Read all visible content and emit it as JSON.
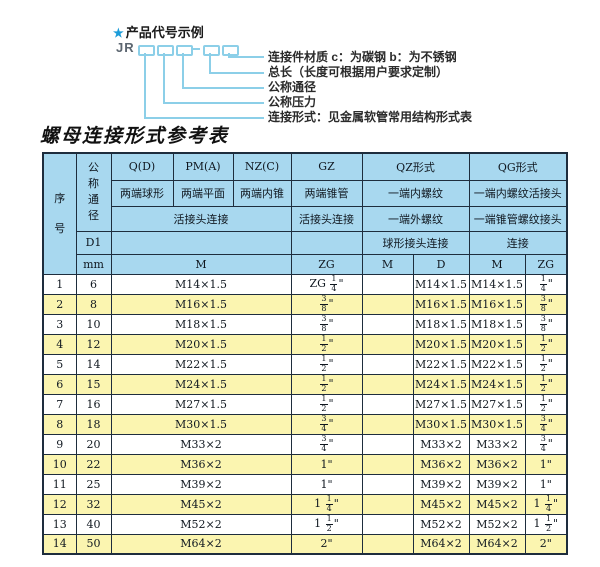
{
  "colors": {
    "header_bg": "#a8d8ef",
    "alt_row_bg": "#fbf5b0",
    "row_bg": "#ffffff",
    "table_border": "#1e2d3d",
    "star_blue": "#1b9cd9",
    "diagram_line_blue": "#8ccfe8"
  },
  "diagram": {
    "star": "★",
    "title": "产品代号示例",
    "code_prefix": "JR",
    "labels": [
      "连接件材质  c：为碳钢  b：为不锈钢",
      "总长（长度可根据用户要求定制）",
      "公称通径",
      "公称压力",
      "连接形式：见金属软管常用结构形式表"
    ]
  },
  "table": {
    "title": "螺母连接形式参考表",
    "header_rows": [
      [
        {
          "t": "序号",
          "rs": 5,
          "v": 2
        },
        {
          "t": "公称通径",
          "rs": 3,
          "v": 1
        },
        {
          "t": "Q(D)"
        },
        {
          "t": "PM(A)"
        },
        {
          "t": "NZ(C)"
        },
        {
          "t": "GZ"
        },
        {
          "t": "QZ形式",
          "cs": 2
        },
        {
          "t": "QG形式",
          "cs": 2
        }
      ],
      [
        {
          "t": "两端球形"
        },
        {
          "t": "两端平面"
        },
        {
          "t": "两端内锥"
        },
        {
          "t": "两端锥管"
        },
        {
          "t": "一端内螺纹",
          "cs": 2
        },
        {
          "t": "一端内螺纹活接头",
          "cs": 2
        }
      ],
      [
        {
          "t": "活接头连接",
          "cs": 3
        },
        {
          "t": "活接头连接"
        },
        {
          "t": "一端外螺纹",
          "cs": 2
        },
        {
          "t": "一端锥管螺纹接头",
          "cs": 2
        }
      ],
      [
        {
          "t": "D1"
        },
        {
          "t": "",
          "cs": 3
        },
        {
          "t": ""
        },
        {
          "t": "球形接头连接",
          "cs": 2
        },
        {
          "t": "连接",
          "cs": 2
        }
      ],
      [
        {
          "t": "mm"
        },
        {
          "t": "M",
          "cs": 3
        },
        {
          "t": "ZG"
        },
        {
          "t": "M"
        },
        {
          "t": "D"
        },
        {
          "t": "M"
        },
        {
          "t": "ZG"
        }
      ]
    ],
    "rows": [
      [
        "1",
        "6",
        "M14×1.5",
        "ZG 1/4\"",
        "",
        "M14×1.5",
        "M14×1.5",
        "1/4\""
      ],
      [
        "2",
        "8",
        "M16×1.5",
        "3/8\"",
        "",
        "M16×1.5",
        "M16×1.5",
        "3/8\""
      ],
      [
        "3",
        "10",
        "M18×1.5",
        "3/8\"",
        "",
        "M18×1.5",
        "M18×1.5",
        "3/8\""
      ],
      [
        "4",
        "12",
        "M20×1.5",
        "1/2\"",
        "",
        "M20×1.5",
        "M20×1.5",
        "1/2\""
      ],
      [
        "5",
        "14",
        "M22×1.5",
        "1/2\"",
        "",
        "M22×1.5",
        "M22×1.5",
        "1/2\""
      ],
      [
        "6",
        "15",
        "M24×1.5",
        "1/2\"",
        "",
        "M24×1.5",
        "M24×1.5",
        "1/2\""
      ],
      [
        "7",
        "16",
        "M27×1.5",
        "1/2\"",
        "",
        "M27×1.5",
        "M27×1.5",
        "1/2\""
      ],
      [
        "8",
        "18",
        "M30×1.5",
        "3/4\"",
        "",
        "M30×1.5",
        "M30×1.5",
        "3/4\""
      ],
      [
        "9",
        "20",
        "M33×2",
        "3/4\"",
        "",
        "M33×2",
        "M33×2",
        "3/4\""
      ],
      [
        "10",
        "22",
        "M36×2",
        "1\"",
        "",
        "M36×2",
        "M36×2",
        "1\""
      ],
      [
        "11",
        "25",
        "M39×2",
        "1\"",
        "",
        "M39×2",
        "M39×2",
        "1\""
      ],
      [
        "12",
        "32",
        "M45×2",
        "1 1/4\"",
        "",
        "M45×2",
        "M45×2",
        "1 1/4\""
      ],
      [
        "13",
        "40",
        "M52×2",
        "1 1/2\"",
        "",
        "M52×2",
        "M52×2",
        "1 1/2\""
      ],
      [
        "14",
        "50",
        "M64×2",
        "2\"",
        "",
        "M64×2",
        "M64×2",
        "2\""
      ]
    ]
  }
}
